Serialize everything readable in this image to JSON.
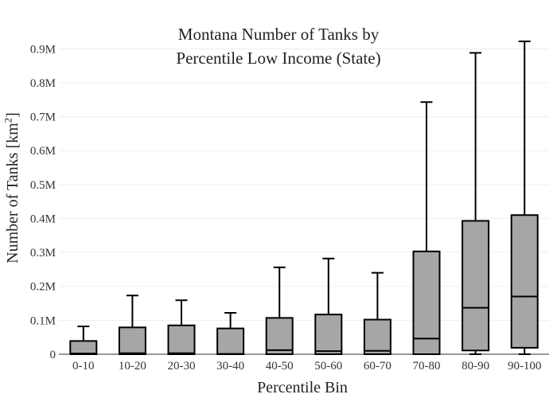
{
  "chart_data": {
    "type": "box",
    "title_line1": "Montana Number of Tanks by",
    "title_line2": "Percentile Low Income (State)",
    "xlabel": "Percentile Bin",
    "ylabel_prefix": "Number of Tanks  [km",
    "ylabel_sup": "2",
    "ylabel_suffix": "]",
    "categories": [
      "0-10",
      "10-20",
      "20-30",
      "30-40",
      "40-50",
      "50-60",
      "60-70",
      "70-80",
      "80-90",
      "90-100"
    ],
    "boxes": [
      {
        "whisker_low": 0,
        "q1": 0,
        "median": 2000,
        "q3": 39000,
        "whisker_high": 82000
      },
      {
        "whisker_low": 0,
        "q1": 0,
        "median": 3000,
        "q3": 79000,
        "whisker_high": 173000
      },
      {
        "whisker_low": 0,
        "q1": 0,
        "median": 3000,
        "q3": 85000,
        "whisker_high": 159000
      },
      {
        "whisker_low": 0,
        "q1": 0,
        "median": 1000,
        "q3": 76000,
        "whisker_high": 122000
      },
      {
        "whisker_low": 0,
        "q1": 0,
        "median": 12000,
        "q3": 107000,
        "whisker_high": 256000
      },
      {
        "whisker_low": 0,
        "q1": 0,
        "median": 9000,
        "q3": 117000,
        "whisker_high": 282000
      },
      {
        "whisker_low": 0,
        "q1": 0,
        "median": 10000,
        "q3": 102000,
        "whisker_high": 240000
      },
      {
        "whisker_low": 0,
        "q1": 0,
        "median": 46000,
        "q3": 303000,
        "whisker_high": 743000
      },
      {
        "whisker_low": 0,
        "q1": 11000,
        "median": 137000,
        "q3": 393000,
        "whisker_high": 888000
      },
      {
        "whisker_low": 0,
        "q1": 19000,
        "median": 170000,
        "q3": 410000,
        "whisker_high": 922000
      }
    ],
    "ylim": [
      0,
      950000
    ],
    "y_ticks": [
      {
        "value": 0,
        "label": "0"
      },
      {
        "value": 100000,
        "label": "0.1M"
      },
      {
        "value": 200000,
        "label": "0.2M"
      },
      {
        "value": 300000,
        "label": "0.3M"
      },
      {
        "value": 400000,
        "label": "0.4M"
      },
      {
        "value": 500000,
        "label": "0.5M"
      },
      {
        "value": 600000,
        "label": "0.6M"
      },
      {
        "value": 700000,
        "label": "0.7M"
      },
      {
        "value": 800000,
        "label": "0.8M"
      },
      {
        "value": 900000,
        "label": "0.9M"
      }
    ],
    "grid": true,
    "legend": "none",
    "colors": {
      "box_fill": "#a6a6a6",
      "box_stroke": "#000000",
      "grid": "#eeeeee",
      "axis": "#333333"
    }
  }
}
